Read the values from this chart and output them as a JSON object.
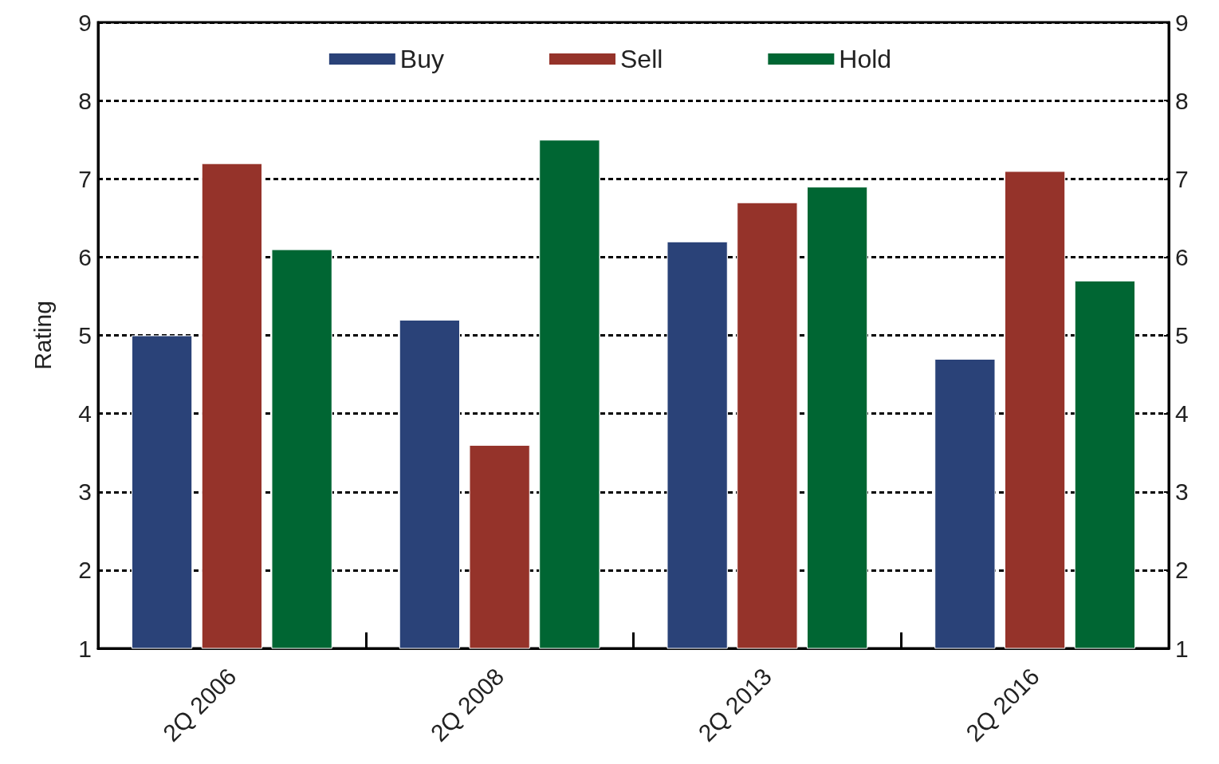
{
  "chart_data": {
    "type": "bar",
    "ylabel": "Rating",
    "categories": [
      "2Q 2006",
      "2Q 2008",
      "2Q 2013",
      "2Q 2016"
    ],
    "series": [
      {
        "name": "Buy",
        "color": "#2a4278",
        "values": [
          5.0,
          5.2,
          6.2,
          4.7
        ]
      },
      {
        "name": "Sell",
        "color": "#95332a",
        "values": [
          7.2,
          3.6,
          6.7,
          7.1
        ]
      },
      {
        "name": "Hold",
        "color": "#006633",
        "values": [
          6.1,
          7.5,
          6.9,
          5.7
        ]
      }
    ],
    "ylim": [
      1,
      9
    ],
    "yticks": [
      1,
      2,
      3,
      4,
      5,
      6,
      7,
      8,
      9
    ],
    "y2lim": [
      1,
      9
    ],
    "y2ticks": [
      1,
      2,
      3,
      4,
      5,
      6,
      7,
      8,
      9
    ],
    "grid": "y",
    "legend": "top"
  }
}
